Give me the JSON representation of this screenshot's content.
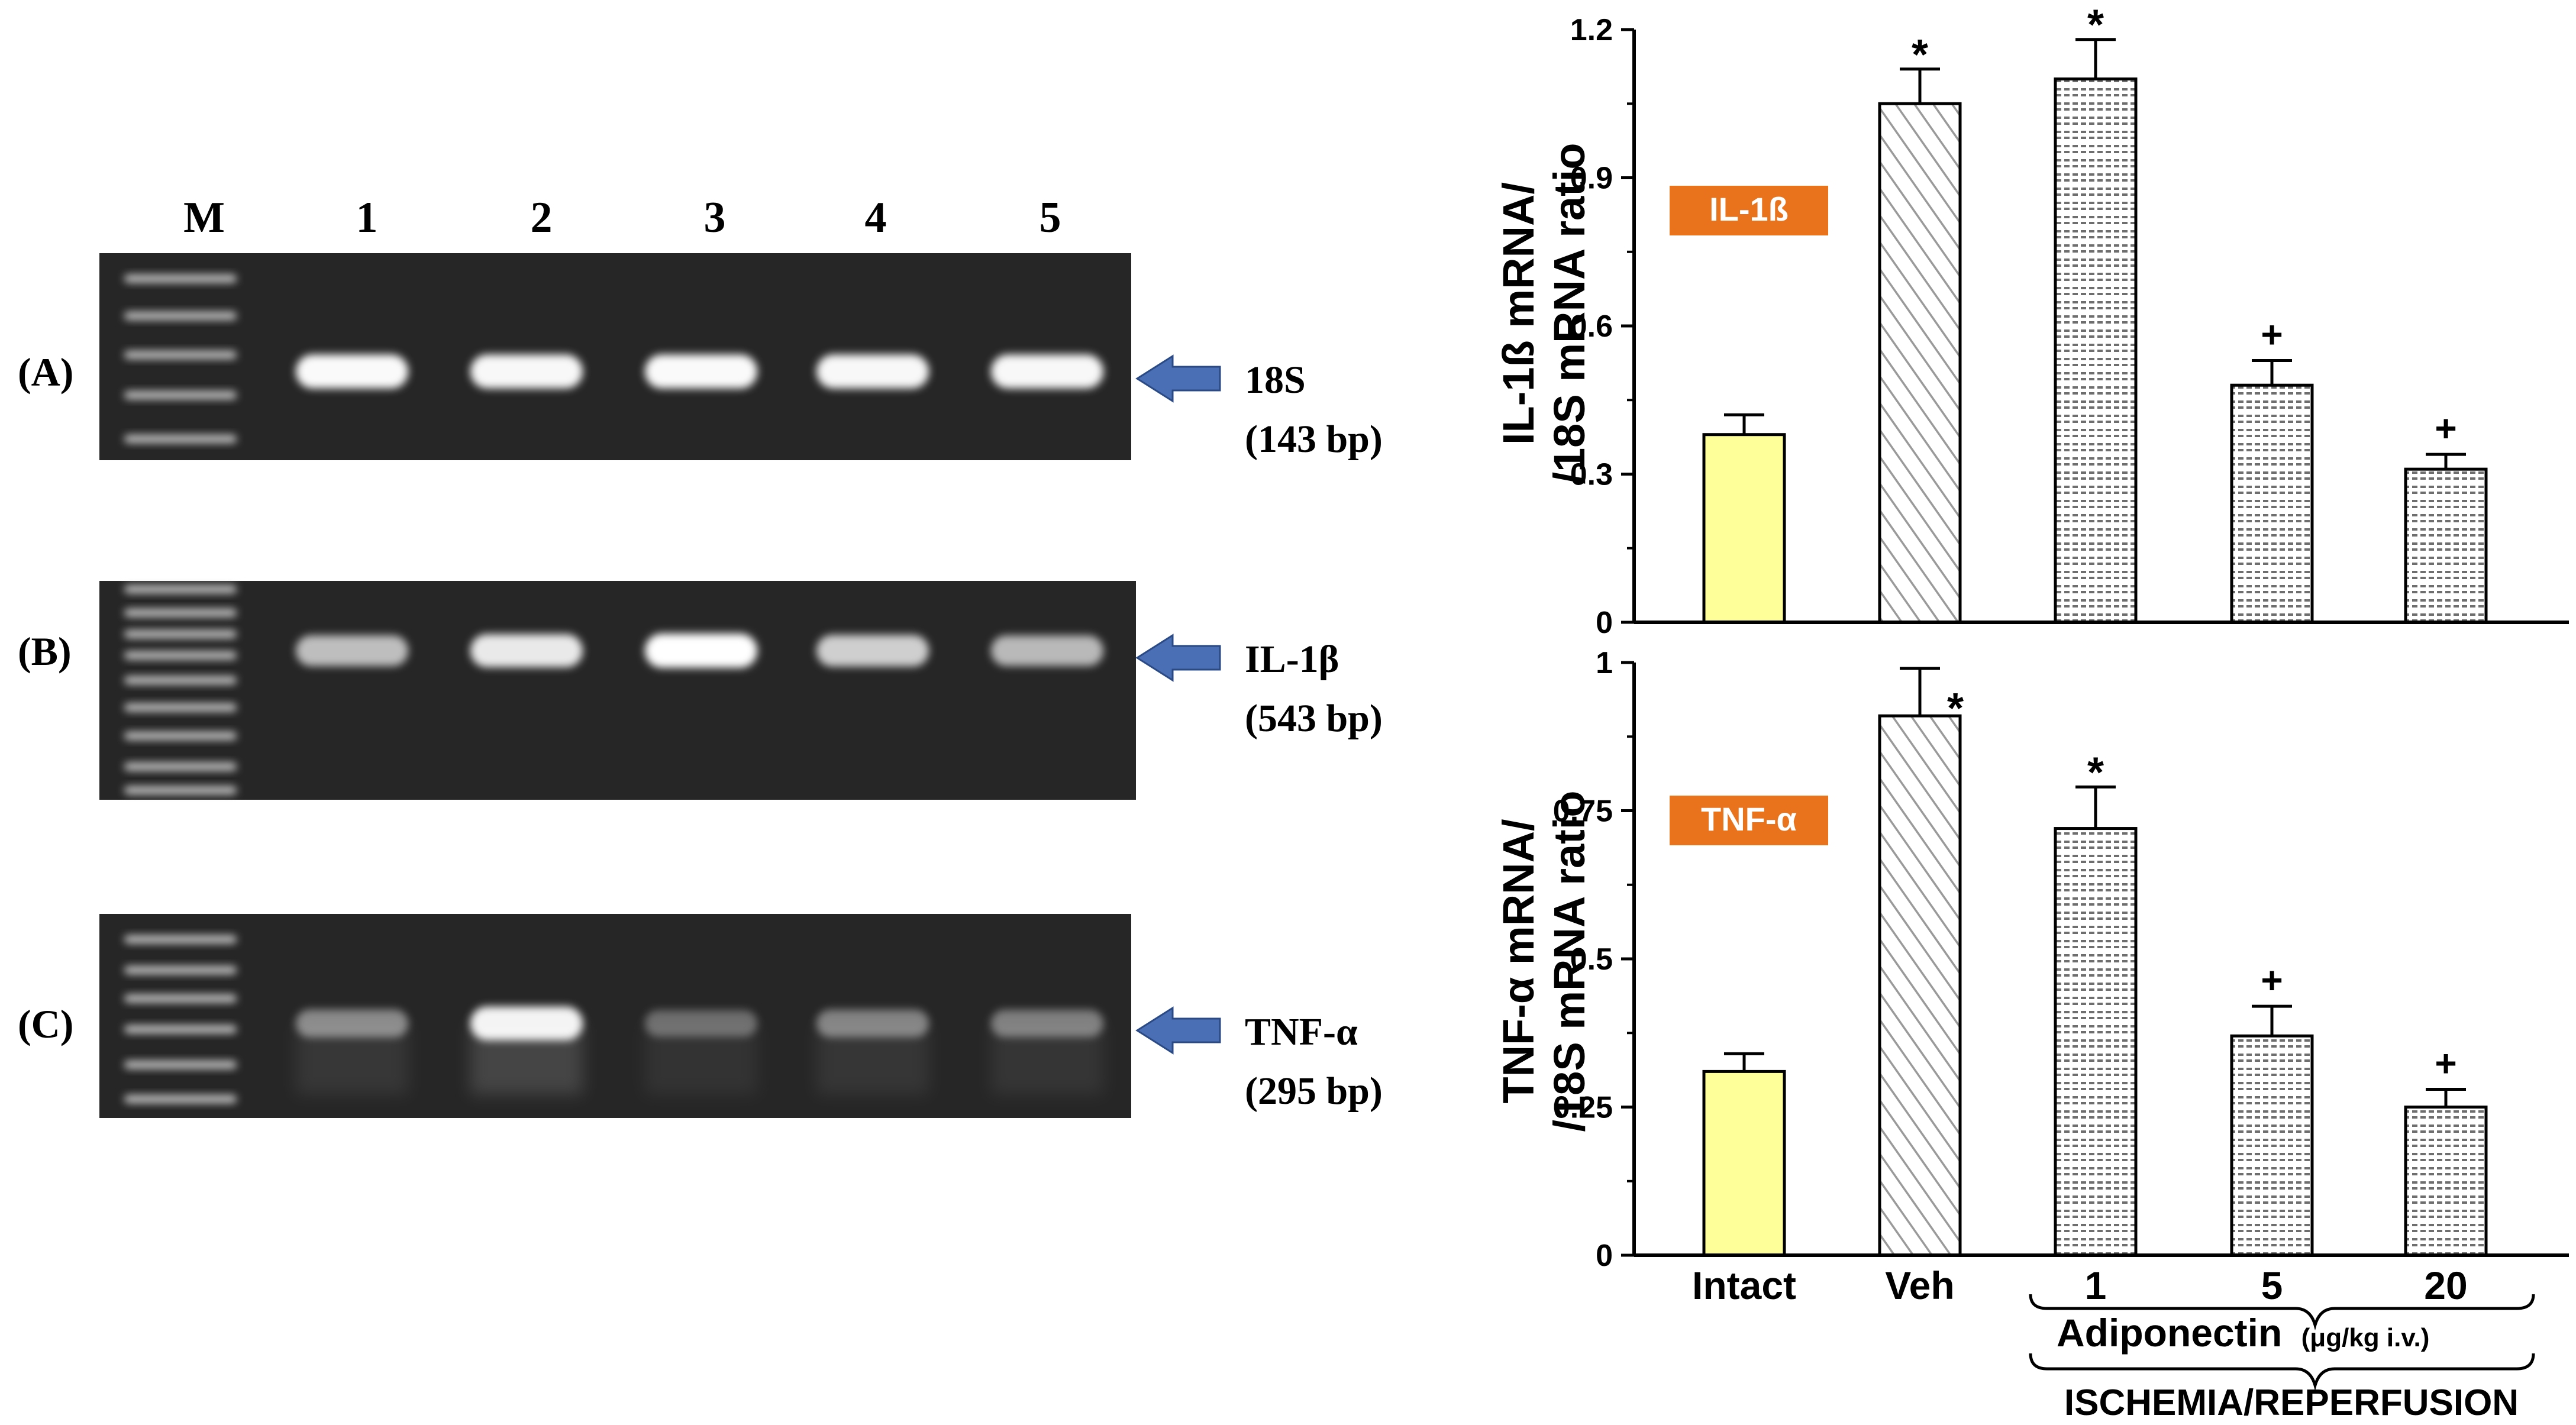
{
  "gel": {
    "lane_labels": [
      "M",
      "1",
      "2",
      "3",
      "4",
      "5"
    ],
    "panels": [
      {
        "label": "(A)",
        "gene": "18S",
        "size": "(143 bp)",
        "band_intensity": [
          0.98,
          0.97,
          0.98,
          0.97,
          0.97
        ]
      },
      {
        "label": "(B)",
        "gene": "IL-1β",
        "size": "(543 bp)",
        "band_intensity": [
          0.7,
          0.9,
          1.0,
          0.78,
          0.68
        ]
      },
      {
        "label": "(C)",
        "gene": "TNF-α",
        "size": "(295 bp)",
        "band_intensity": [
          0.45,
          0.95,
          0.32,
          0.42,
          0.4
        ]
      }
    ]
  },
  "chart_data": [
    {
      "type": "bar",
      "ylabel_line1": "IL-1ß mRNA/",
      "ylabel_line2": "/18S mRNA ratio",
      "tag": "IL-1ß",
      "categories": [
        "Intact",
        "Veh",
        "1",
        "5",
        "20"
      ],
      "values": [
        0.38,
        1.05,
        1.1,
        0.48,
        0.31
      ],
      "errors": [
        0.04,
        0.07,
        0.08,
        0.05,
        0.03
      ],
      "annotations": [
        "",
        "*",
        "*",
        "+",
        "+"
      ],
      "ylim": [
        0,
        1.2
      ],
      "yticks": [
        "0",
        "0.3",
        "0.6",
        "0.9",
        "1.2"
      ]
    },
    {
      "type": "bar",
      "ylabel_line1": "TNF-α mRNA/",
      "ylabel_line2": "/18S mRNA ratio",
      "tag": "TNF-α",
      "categories": [
        "Intact",
        "Veh",
        "1",
        "5",
        "20"
      ],
      "values": [
        0.31,
        0.91,
        0.72,
        0.37,
        0.25
      ],
      "errors": [
        0.03,
        0.08,
        0.07,
        0.05,
        0.03
      ],
      "annotations": [
        "",
        "*",
        "*",
        "+",
        "+"
      ],
      "ylim": [
        0,
        1
      ],
      "yticks": [
        "0",
        "0.25",
        "0.5",
        "0.75",
        "1"
      ]
    }
  ],
  "xaxis": {
    "categories": [
      "Intact",
      "Veh",
      "1",
      "5",
      "20"
    ],
    "group_label": "Adiponectin",
    "group_unit": "(μg/kg i.v.)",
    "condition_label": "ISCHEMIA/REPERFUSION"
  },
  "colors": {
    "intact_fill": "#ffff99",
    "tag_fill": "#e8731c",
    "tag_text": "#ffffff",
    "arrow_fill": "#4a6fb5",
    "gel_background": "#262626",
    "band": "#ffffff"
  }
}
